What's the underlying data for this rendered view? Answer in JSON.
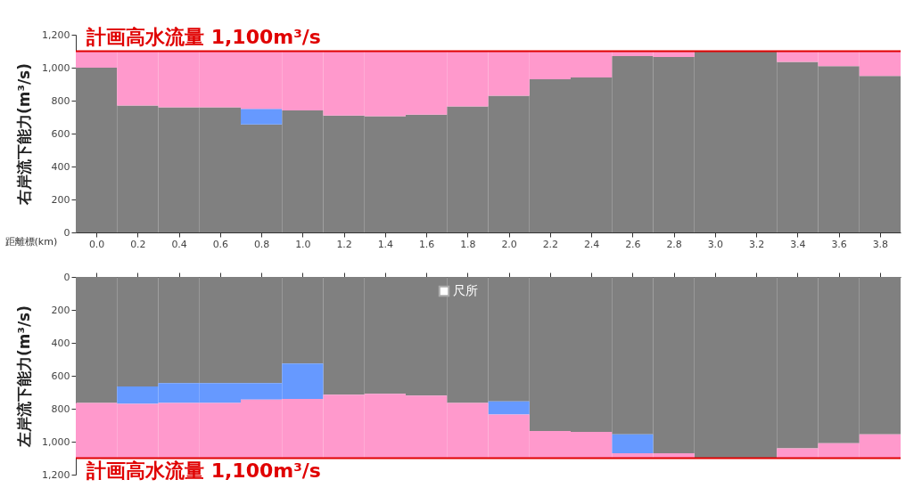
{
  "chart_data": [
    {
      "type": "bar",
      "stacked": true,
      "ylabel": "右岸流下能力(m³/s)",
      "xlabel": "距離標(km)",
      "x": [
        0.0,
        0.2,
        0.4,
        0.6,
        0.8,
        1.0,
        1.2,
        1.4,
        1.6,
        1.8,
        2.0,
        2.2,
        2.4,
        2.6,
        2.8,
        3.0,
        3.2,
        3.4,
        3.6,
        3.8
      ],
      "series": [
        {
          "color": "#808080",
          "values": [
            1000,
            770,
            760,
            760,
            655,
            740,
            710,
            705,
            715,
            765,
            830,
            930,
            940,
            1070,
            1065,
            1100,
            1100,
            1035,
            1010,
            950
          ]
        },
        {
          "color": "#6699ff",
          "values": [
            null,
            null,
            null,
            null,
            95,
            null,
            null,
            null,
            null,
            null,
            null,
            null,
            null,
            null,
            null,
            null,
            null,
            null,
            null,
            null
          ]
        },
        {
          "color": "#ff99cc",
          "values": [
            100,
            330,
            340,
            340,
            350,
            360,
            390,
            395,
            385,
            335,
            270,
            170,
            160,
            30,
            35,
            0,
            0,
            65,
            90,
            150
          ]
        }
      ],
      "xlim": [
        -0.1,
        3.9
      ],
      "xticks": [
        {
          "value": 0.0,
          "label": "0.0"
        },
        {
          "value": 0.2,
          "label": "0.2"
        },
        {
          "value": 0.4,
          "label": "0.4"
        },
        {
          "value": 0.6,
          "label": "0.6"
        },
        {
          "value": 0.8,
          "label": "0.8"
        },
        {
          "value": 1.0,
          "label": "1.0"
        },
        {
          "value": 1.2,
          "label": "1.2"
        },
        {
          "value": 1.4,
          "label": "1.4"
        },
        {
          "value": 1.6,
          "label": "1.6"
        },
        {
          "value": 1.8,
          "label": "1.8"
        },
        {
          "value": 2.0,
          "label": "2.0"
        },
        {
          "value": 2.2,
          "label": "2.2"
        },
        {
          "value": 2.4,
          "label": "2.4"
        },
        {
          "value": 2.6,
          "label": "2.6"
        },
        {
          "value": 2.8,
          "label": "2.8"
        },
        {
          "value": 3.0,
          "label": "3.0"
        },
        {
          "value": 3.2,
          "label": "3.2"
        },
        {
          "value": 3.4,
          "label": "3.4"
        },
        {
          "value": 3.6,
          "label": "3.6"
        },
        {
          "value": 3.8,
          "label": "3.8"
        }
      ],
      "ylim": [
        0,
        1200
      ],
      "yticks": [
        0,
        {
          "value": 200,
          "label": "200"
        },
        {
          "value": 400,
          "label": "400"
        },
        {
          "value": 600,
          "label": "600"
        },
        {
          "value": 800,
          "label": "800"
        },
        {
          "value": 1000,
          "label": "1,000"
        },
        {
          "value": 1200,
          "label": "1,200"
        }
      ],
      "ref_lines": [
        {
          "axis": "y",
          "value": 1100,
          "label": "計画高水流量  1,100m³/s",
          "color": "#e00000"
        }
      ],
      "grid": false
    },
    {
      "type": "bar",
      "stacked": true,
      "ylabel": "左岸流下能力(m³/s)",
      "x": [
        0.0,
        0.2,
        0.4,
        0.6,
        0.8,
        1.0,
        1.2,
        1.4,
        1.6,
        1.8,
        2.0,
        2.2,
        2.4,
        2.6,
        2.8,
        3.0,
        3.2,
        3.4,
        3.6,
        3.8
      ],
      "series": [
        {
          "color": "#808080",
          "values": [
            765,
            665,
            645,
            645,
            645,
            525,
            715,
            710,
            720,
            765,
            755,
            935,
            940,
            955,
            1070,
            1100,
            1100,
            1040,
            1010,
            955
          ]
        },
        {
          "color": "#6699ff",
          "values": [
            null,
            105,
            120,
            120,
            100,
            215,
            null,
            null,
            null,
            null,
            80,
            null,
            null,
            115,
            null,
            null,
            null,
            null,
            null,
            null
          ]
        },
        {
          "color": "#ff99cc",
          "values": [
            335,
            330,
            335,
            335,
            355,
            360,
            385,
            390,
            380,
            335,
            265,
            165,
            160,
            30,
            30,
            0,
            0,
            60,
            90,
            145
          ]
        },
        {
          "name": "尺所",
          "color": "#ffffff",
          "values": [
            null,
            null,
            null,
            null,
            null,
            null,
            null,
            null,
            null,
            null,
            null,
            null,
            null,
            null,
            null,
            null,
            null,
            null,
            null,
            null
          ]
        }
      ],
      "xlim": [
        -0.1,
        3.9
      ],
      "xticks": [
        {
          "value": 0.0,
          "label": null
        },
        {
          "value": 0.2,
          "label": null
        },
        {
          "value": 0.4,
          "label": null
        },
        {
          "value": 0.6,
          "label": null
        },
        {
          "value": 0.8,
          "label": null
        },
        {
          "value": 1.0,
          "label": null
        },
        {
          "value": 1.2,
          "label": null
        },
        {
          "value": 1.4,
          "label": null
        },
        {
          "value": 1.6,
          "label": null
        },
        {
          "value": 1.8,
          "label": null
        },
        {
          "value": 2.0,
          "label": null
        },
        {
          "value": 2.2,
          "label": null
        },
        {
          "value": 2.4,
          "label": null
        },
        {
          "value": 2.6,
          "label": null
        },
        {
          "value": 2.8,
          "label": null
        },
        {
          "value": 3.0,
          "label": null
        },
        {
          "value": 3.2,
          "label": null
        },
        {
          "value": 3.4,
          "label": null
        },
        {
          "value": 3.6,
          "label": null
        },
        {
          "value": 3.8,
          "label": null
        }
      ],
      "ylim": [
        1200,
        0
      ],
      "yticks": [
        0,
        {
          "value": 200,
          "label": "200"
        },
        {
          "value": 400,
          "label": "400"
        },
        {
          "value": 600,
          "label": "600"
        },
        {
          "value": 800,
          "label": "800"
        },
        {
          "value": 1000,
          "label": "1,000"
        },
        {
          "value": 1200,
          "label": "1,200"
        }
      ],
      "tick_labels": "y",
      "ref_lines": [
        {
          "axis": "y",
          "value": 1100,
          "label": "計画高水流量  1,100m³/s",
          "color": "#e00000"
        }
      ],
      "grid": false,
      "legend": "top"
    }
  ]
}
